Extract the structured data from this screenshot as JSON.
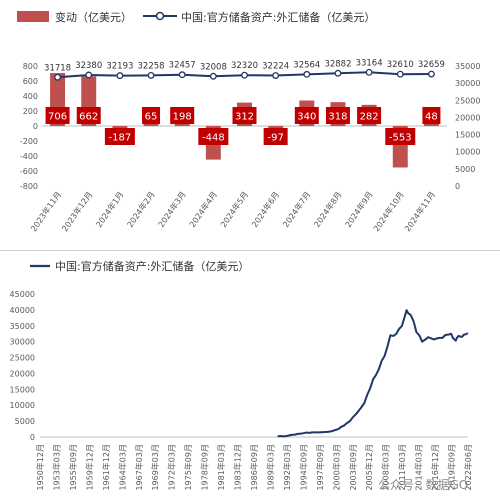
{
  "chart_data": [
    {
      "type": "bar+line",
      "legend": [
        "变动（亿美元）",
        "中国:官方储备资产:外汇储备（亿美元）"
      ],
      "categories": [
        "2023年11月",
        "2023年12月",
        "2024年1月",
        "2024年2月",
        "2024年3月",
        "2024年4月",
        "2024年5月",
        "2024年6月",
        "2024年7月",
        "2024年8月",
        "2024年9月",
        "2024年10月",
        "2024年11月"
      ],
      "series": [
        {
          "name": "变动（亿美元）",
          "axis": "left",
          "type": "bar",
          "values": [
            706,
            662,
            -187,
            65,
            198,
            -448,
            312,
            -97,
            340,
            318,
            282,
            -553,
            48
          ]
        },
        {
          "name": "中国:官方储备资产:外汇储备（亿美元）",
          "axis": "right",
          "type": "line",
          "values": [
            31718,
            32380,
            32193,
            32258,
            32457,
            32008,
            32320,
            32224,
            32564,
            32882,
            33164,
            32610,
            32659
          ]
        }
      ],
      "left_axis": {
        "min": -800,
        "max": 800,
        "step": 200
      },
      "right_axis": {
        "min": 0,
        "max": 35000,
        "step": 5000
      },
      "colors": {
        "bar": "#c0504d",
        "label_box": "#c00000",
        "line": "#1f3864"
      }
    },
    {
      "type": "line",
      "legend": [
        "中国:官方储备资产:外汇储备（亿美元）"
      ],
      "y_axis": {
        "min": 0,
        "max": 45000,
        "step": 5000
      },
      "x_range": [
        1950.92,
        2024.92
      ],
      "x_tick_labels": [
        "1950年12月",
        "1953年03月",
        "1955年09月",
        "1959年12月",
        "1961年12月",
        "1964年03月",
        "1967年03月",
        "1969年03月",
        "1972年03月",
        "1975年09月",
        "1978年09月",
        "1981年03月",
        "1983年12月",
        "1986年09月",
        "1989年03月",
        "1992年03月",
        "1994年09月",
        "1997年09月",
        "2000年03月",
        "2003年09月",
        "2005年12月",
        "2008年03月",
        "2011年03月",
        "2014年03月",
        "2016年12月",
        "2019年09月",
        "2022年06月"
      ],
      "points": [
        [
          1992.0,
          200
        ],
        [
          1992.5,
          300
        ],
        [
          1993.0,
          200
        ],
        [
          1993.5,
          300
        ],
        [
          1994.0,
          500
        ],
        [
          1994.5,
          700
        ],
        [
          1995.0,
          750
        ],
        [
          1995.5,
          1000
        ],
        [
          1996.0,
          1050
        ],
        [
          1996.5,
          1200
        ],
        [
          1997.0,
          1400
        ],
        [
          1997.5,
          1300
        ],
        [
          1998.0,
          1450
        ],
        [
          1998.5,
          1450
        ],
        [
          1999.0,
          1450
        ],
        [
          1999.5,
          1500
        ],
        [
          2000.0,
          1550
        ],
        [
          2000.5,
          1600
        ],
        [
          2001.0,
          1700
        ],
        [
          2001.5,
          1900
        ],
        [
          2002.0,
          2200
        ],
        [
          2002.5,
          2500
        ],
        [
          2003.0,
          3200
        ],
        [
          2003.5,
          3600
        ],
        [
          2004.0,
          4400
        ],
        [
          2004.5,
          5000
        ],
        [
          2005.0,
          6200
        ],
        [
          2005.5,
          7100
        ],
        [
          2006.0,
          8200
        ],
        [
          2006.5,
          9400
        ],
        [
          2007.0,
          10700
        ],
        [
          2007.5,
          13300
        ],
        [
          2008.0,
          15300
        ],
        [
          2008.5,
          18100
        ],
        [
          2009.0,
          19500
        ],
        [
          2009.5,
          21300
        ],
        [
          2010.0,
          24000
        ],
        [
          2010.5,
          25500
        ],
        [
          2011.0,
          28500
        ],
        [
          2011.5,
          32000
        ],
        [
          2012.0,
          31800
        ],
        [
          2012.5,
          32400
        ],
        [
          2013.0,
          34000
        ],
        [
          2013.5,
          35000
        ],
        [
          2014.0,
          38000
        ],
        [
          2014.3,
          39900
        ],
        [
          2014.6,
          38900
        ],
        [
          2015.0,
          38400
        ],
        [
          2015.5,
          36500
        ],
        [
          2016.0,
          33000
        ],
        [
          2016.5,
          32000
        ],
        [
          2017.0,
          30000
        ],
        [
          2017.4,
          30500
        ],
        [
          2017.8,
          31000
        ],
        [
          2018.0,
          31400
        ],
        [
          2018.5,
          31100
        ],
        [
          2019.0,
          30700
        ],
        [
          2019.5,
          31000
        ],
        [
          2020.0,
          31200
        ],
        [
          2020.5,
          31200
        ],
        [
          2021.0,
          32100
        ],
        [
          2021.5,
          32200
        ],
        [
          2022.0,
          32500
        ],
        [
          2022.3,
          31200
        ],
        [
          2022.8,
          30300
        ],
        [
          2023.0,
          31200
        ],
        [
          2023.3,
          31800
        ],
        [
          2023.6,
          31600
        ],
        [
          2023.9,
          31500
        ],
        [
          2024.2,
          32200
        ],
        [
          2024.5,
          32300
        ],
        [
          2024.9,
          32700
        ]
      ],
      "color": "#1f3864"
    }
  ],
  "watermark": "公众号 · 数据GO"
}
